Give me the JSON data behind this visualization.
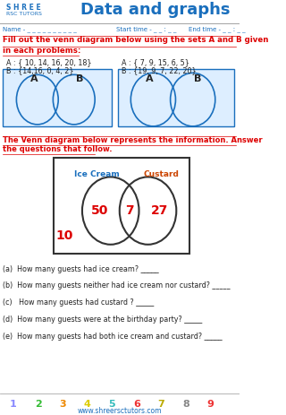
{
  "title": "Data and graphs",
  "set1_A": "A : { 10, 14, 16, 20, 18}",
  "set1_B": "B : {14,16, 0, 4, 2}",
  "set2_A": "A : { 7, 9, 15, 6, 5}",
  "set2_B": "B : {19, 9, 7, 22, 20}",
  "instruction_line1": "Fill out the venn diagram below using the sets A and B given",
  "instruction_line2": "in each problems:",
  "instruction2_line1": "The Venn diagram below represents the information. Answer",
  "instruction2_line2": "the questions that follow.",
  "venn_label_left": "Ice Cream",
  "venn_label_right": "Custard",
  "venn_num_left": "50",
  "venn_num_mid": "7",
  "venn_num_right": "27",
  "venn_num_outside": "10",
  "questions": [
    "(a)  How many guests had ice cream? _____",
    "(b)  How many guests neither had ice cream nor custard? _____",
    "(c)   How many guests had custard ? _____",
    "(d)  How many guests were at the birthday party? _____",
    "(e)  How many guests had both ice cream and custard? _____"
  ],
  "numbers_row": [
    "1",
    "2",
    "3",
    "4",
    "5",
    "6",
    "7",
    "8",
    "9"
  ],
  "numbers_colors": [
    "#8888ff",
    "#33bb33",
    "#ee8800",
    "#ddcc00",
    "#33bbbb",
    "#ee3333",
    "#bbaa00",
    "#888888",
    "#ee3333"
  ],
  "footer": "www.shreersctutors.com",
  "bg_color": "#ffffff",
  "title_color": "#1a6fbd",
  "red_color": "#dd0000",
  "blue_color": "#1a6fbd",
  "black_color": "#222222",
  "circle_color": "#1a6fbd",
  "venn2_circle_color": "#333333"
}
